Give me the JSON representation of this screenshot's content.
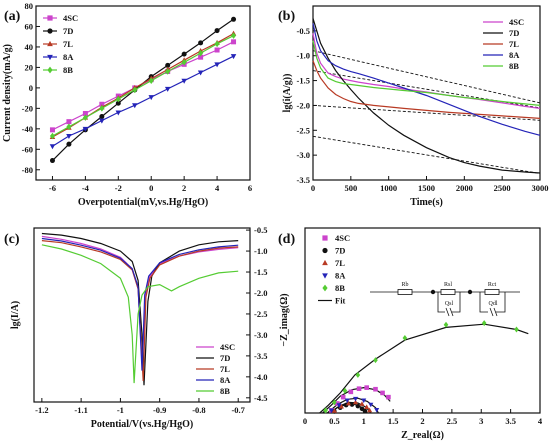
{
  "colors": {
    "4SC": "#cc44cc",
    "7D": "#111111",
    "7L": "#b83a24",
    "8A": "#2424b8",
    "8B": "#55cc33",
    "fit": "#111111",
    "dashed": "#111111"
  },
  "chart_data": [
    {
      "panel": "(a)",
      "type": "line",
      "xlabel": "Overpotential(mV,vs.Hg/HgO)",
      "ylabel": "Current density(mA/g)",
      "xlim": [
        -7,
        6
      ],
      "ylim": [
        -90,
        80
      ],
      "xticks": [
        -6,
        -4,
        -2,
        0,
        2,
        4,
        6
      ],
      "yticks": [
        -80,
        -60,
        -40,
        -20,
        0,
        20,
        40,
        60,
        80
      ],
      "legend_position": "top-left",
      "x": [
        -6,
        -5,
        -4,
        -3,
        -2,
        -1,
        0,
        1,
        2,
        3,
        4,
        5
      ],
      "series": [
        {
          "name": "4SC",
          "marker": "square",
          "values": [
            -41,
            -33,
            -25,
            -16,
            -8,
            0,
            8,
            16,
            23,
            30,
            37,
            45
          ]
        },
        {
          "name": "7D",
          "marker": "circle",
          "values": [
            -71,
            -55,
            -41,
            -28,
            -15,
            -2,
            11,
            22,
            33,
            44,
            56,
            67
          ]
        },
        {
          "name": "7L",
          "marker": "triangle-up",
          "values": [
            -48,
            -39,
            -29,
            -19,
            -10,
            0,
            9,
            18,
            27,
            36,
            44,
            53
          ]
        },
        {
          "name": "8A",
          "marker": "triangle-down",
          "values": [
            -57,
            -47,
            -40,
            -32,
            -24,
            -17,
            -9,
            -1,
            7,
            15,
            23,
            31
          ]
        },
        {
          "name": "8B",
          "marker": "diamond",
          "values": [
            -47,
            -38,
            -29,
            -20,
            -11,
            -2,
            7,
            16,
            25,
            34,
            43,
            51
          ]
        }
      ]
    },
    {
      "panel": "(b)",
      "type": "line",
      "xlabel": "Time(s)",
      "ylabel": "lg(i(A/g))",
      "xlim": [
        0,
        3000
      ],
      "ylim": [
        -3.5,
        0
      ],
      "xticks": [
        0,
        500,
        1000,
        1500,
        2000,
        2500,
        3000
      ],
      "yticks": [
        -0.5,
        -1.0,
        -1.5,
        -2.0,
        -2.5,
        -3.0,
        -3.5
      ],
      "legend_position": "top-right",
      "x": [
        0,
        50,
        100,
        200,
        300,
        400,
        500,
        600,
        800,
        1000,
        1200,
        1500,
        1800,
        2000,
        2200,
        2500,
        2800,
        3000
      ],
      "series": [
        {
          "name": "4SC",
          "values": [
            -0.55,
            -0.95,
            -1.15,
            -1.35,
            -1.42,
            -1.47,
            -1.5,
            -1.53,
            -1.58,
            -1.62,
            -1.67,
            -1.73,
            -1.8,
            -1.84,
            -1.88,
            -1.95,
            -2.02,
            -2.06
          ]
        },
        {
          "name": "7D",
          "values": [
            -0.25,
            -0.5,
            -0.75,
            -1.05,
            -1.3,
            -1.5,
            -1.68,
            -1.85,
            -2.15,
            -2.4,
            -2.6,
            -2.85,
            -3.05,
            -3.15,
            -3.22,
            -3.3,
            -3.34,
            -3.36
          ]
        },
        {
          "name": "7L",
          "values": [
            -1.1,
            -1.3,
            -1.45,
            -1.65,
            -1.78,
            -1.86,
            -1.92,
            -1.96,
            -2.0,
            -2.03,
            -2.06,
            -2.1,
            -2.14,
            -2.16,
            -2.18,
            -2.21,
            -2.24,
            -2.26
          ]
        },
        {
          "name": "8A",
          "values": [
            -0.35,
            -0.7,
            -0.9,
            -1.1,
            -1.2,
            -1.27,
            -1.32,
            -1.36,
            -1.45,
            -1.55,
            -1.65,
            -1.8,
            -1.98,
            -2.1,
            -2.22,
            -2.38,
            -2.52,
            -2.6
          ]
        },
        {
          "name": "8B",
          "values": [
            -0.7,
            -1.05,
            -1.25,
            -1.45,
            -1.52,
            -1.56,
            -1.58,
            -1.6,
            -1.64,
            -1.67,
            -1.7,
            -1.74,
            -1.8,
            -1.84,
            -1.87,
            -1.92,
            -1.97,
            -2.0
          ]
        }
      ],
      "dashed_fits": [
        {
          "x": [
            0,
            3000
          ],
          "y": [
            -0.9,
            -1.95
          ]
        },
        {
          "x": [
            0,
            3000
          ],
          "y": [
            -1.3,
            -2.05
          ]
        },
        {
          "x": [
            0,
            3000
          ],
          "y": [
            -2.0,
            -2.3
          ]
        },
        {
          "x": [
            0,
            3000
          ],
          "y": [
            -2.62,
            -3.37
          ]
        }
      ]
    },
    {
      "panel": "(c)",
      "type": "line",
      "xlabel": "Potential/V(vs.Hg/HgO)",
      "ylabel": "lg(I/A)",
      "xlim": [
        -1.22,
        -0.67
      ],
      "ylim": [
        -4.6,
        -0.45
      ],
      "xticks": [
        -1.2,
        -1.1,
        -1.0,
        -0.9,
        -0.8,
        -0.7
      ],
      "yticks": [
        -0.5,
        -1.0,
        -1.5,
        -2.0,
        -2.5,
        -3.0,
        -3.5,
        -4.0,
        -4.5
      ],
      "legend_position": "bottom-right",
      "series": [
        {
          "name": "4SC",
          "x": [
            -1.2,
            -1.15,
            -1.1,
            -1.05,
            -1.0,
            -0.97,
            -0.955,
            -0.945,
            -0.935,
            -0.925,
            -0.9,
            -0.85,
            -0.8,
            -0.75,
            -0.7
          ],
          "values": [
            -0.65,
            -0.72,
            -0.82,
            -0.95,
            -1.15,
            -1.42,
            -1.9,
            -3.7,
            -2.0,
            -1.6,
            -1.3,
            -1.12,
            -1.02,
            -0.96,
            -0.92
          ]
        },
        {
          "name": "7D",
          "x": [
            -1.2,
            -1.15,
            -1.1,
            -1.05,
            -1.0,
            -0.97,
            -0.955,
            -0.945,
            -0.94,
            -0.93,
            -0.92,
            -0.9,
            -0.85,
            -0.8,
            -0.75,
            -0.7
          ],
          "values": [
            -0.58,
            -0.62,
            -0.7,
            -0.82,
            -1.0,
            -1.25,
            -1.7,
            -3.0,
            -4.2,
            -2.2,
            -1.6,
            -1.28,
            -1.0,
            -0.85,
            -0.78,
            -0.75
          ]
        },
        {
          "name": "7L",
          "x": [
            -1.2,
            -1.15,
            -1.1,
            -1.05,
            -1.0,
            -0.97,
            -0.955,
            -0.942,
            -0.935,
            -0.925,
            -0.9,
            -0.85,
            -0.8,
            -0.75,
            -0.7
          ],
          "values": [
            -0.75,
            -0.8,
            -0.9,
            -1.02,
            -1.2,
            -1.45,
            -1.9,
            -4.1,
            -2.1,
            -1.65,
            -1.33,
            -1.12,
            -1.0,
            -0.93,
            -0.9
          ]
        },
        {
          "name": "8A",
          "x": [
            -1.2,
            -1.15,
            -1.1,
            -1.05,
            -1.0,
            -0.97,
            -0.955,
            -0.945,
            -0.938,
            -0.928,
            -0.9,
            -0.85,
            -0.8,
            -0.75,
            -0.7
          ],
          "values": [
            -0.7,
            -0.76,
            -0.86,
            -0.98,
            -1.17,
            -1.42,
            -1.85,
            -3.85,
            -2.05,
            -1.6,
            -1.28,
            -1.08,
            -0.97,
            -0.9,
            -0.86
          ]
        },
        {
          "name": "8B",
          "x": [
            -1.2,
            -1.15,
            -1.1,
            -1.05,
            -1.0,
            -0.98,
            -0.97,
            -0.965,
            -0.955,
            -0.945,
            -0.93,
            -0.9,
            -0.87,
            -0.85,
            -0.8,
            -0.75,
            -0.7
          ],
          "values": [
            -0.85,
            -0.95,
            -1.1,
            -1.3,
            -1.65,
            -2.1,
            -3.0,
            -4.15,
            -2.5,
            -2.05,
            -1.85,
            -1.8,
            -1.95,
            -1.85,
            -1.65,
            -1.52,
            -1.48
          ]
        }
      ]
    },
    {
      "panel": "(d)",
      "type": "scatter",
      "xlabel": "Z_real(Ω)",
      "ylabel": "−Z_imag(Ω)",
      "xlim": [
        0,
        4.0
      ],
      "ylim": [
        0,
        3.5
      ],
      "xticks": [
        0.0,
        0.5,
        1.0,
        1.5,
        2.0,
        2.5,
        3.0,
        3.5,
        4.0
      ],
      "yticks": [],
      "legend_position": "top-left",
      "series": [
        {
          "name": "4SC",
          "marker": "square",
          "x": [
            0.45,
            0.55,
            0.65,
            0.78,
            0.92,
            1.05,
            1.2,
            1.32,
            1.42
          ],
          "values": [
            0.05,
            0.18,
            0.3,
            0.4,
            0.46,
            0.48,
            0.45,
            0.38,
            0.3
          ]
        },
        {
          "name": "7D",
          "marker": "circle",
          "x": [
            0.5,
            0.6,
            0.7,
            0.8,
            0.9,
            0.97,
            1.02
          ],
          "values": [
            0.03,
            0.1,
            0.15,
            0.16,
            0.13,
            0.08,
            0.04
          ]
        },
        {
          "name": "7L",
          "marker": "triangle-up",
          "x": [
            0.5,
            0.62,
            0.74,
            0.86,
            0.97,
            1.05,
            1.1
          ],
          "values": [
            0.04,
            0.12,
            0.18,
            0.2,
            0.17,
            0.11,
            0.05
          ]
        },
        {
          "name": "8A",
          "marker": "triangle-down",
          "x": [
            0.45,
            0.58,
            0.72,
            0.86,
            1.0,
            1.12,
            1.22
          ],
          "values": [
            0.05,
            0.15,
            0.24,
            0.27,
            0.24,
            0.16,
            0.06
          ]
        },
        {
          "name": "8B",
          "marker": "diamond",
          "x": [
            0.35,
            0.5,
            0.68,
            0.9,
            1.2,
            1.7,
            2.4,
            3.05,
            3.6
          ],
          "values": [
            0.05,
            0.2,
            0.42,
            0.72,
            1.0,
            1.42,
            1.67,
            1.7,
            1.58
          ]
        }
      ],
      "fit": [
        {
          "x": [
            0.3,
            0.45,
            0.6,
            0.8,
            1.0,
            1.2,
            1.35,
            1.45
          ],
          "y": [
            0.0,
            0.15,
            0.32,
            0.44,
            0.48,
            0.44,
            0.34,
            0.22
          ]
        },
        {
          "x": [
            0.42,
            0.55,
            0.7,
            0.85,
            0.98,
            1.06
          ],
          "y": [
            0.0,
            0.1,
            0.16,
            0.16,
            0.1,
            0.0
          ]
        },
        {
          "x": [
            0.42,
            0.58,
            0.74,
            0.9,
            1.04,
            1.12
          ],
          "y": [
            0.0,
            0.13,
            0.2,
            0.19,
            0.11,
            0.0
          ]
        },
        {
          "x": [
            0.38,
            0.55,
            0.72,
            0.9,
            1.06,
            1.2,
            1.25
          ],
          "y": [
            0.0,
            0.16,
            0.26,
            0.28,
            0.22,
            0.1,
            0.0
          ]
        },
        {
          "x": [
            0.25,
            0.4,
            0.6,
            0.85,
            1.2,
            1.7,
            2.4,
            3.05,
            3.6,
            3.8
          ],
          "y": [
            0.0,
            0.15,
            0.38,
            0.72,
            1.02,
            1.38,
            1.62,
            1.68,
            1.58,
            1.5
          ]
        }
      ],
      "extra_legend": [
        "Fit"
      ],
      "circuit_labels": [
        "Rb",
        "Rsl",
        "Rct",
        "Qsl",
        "Qdl"
      ]
    }
  ]
}
